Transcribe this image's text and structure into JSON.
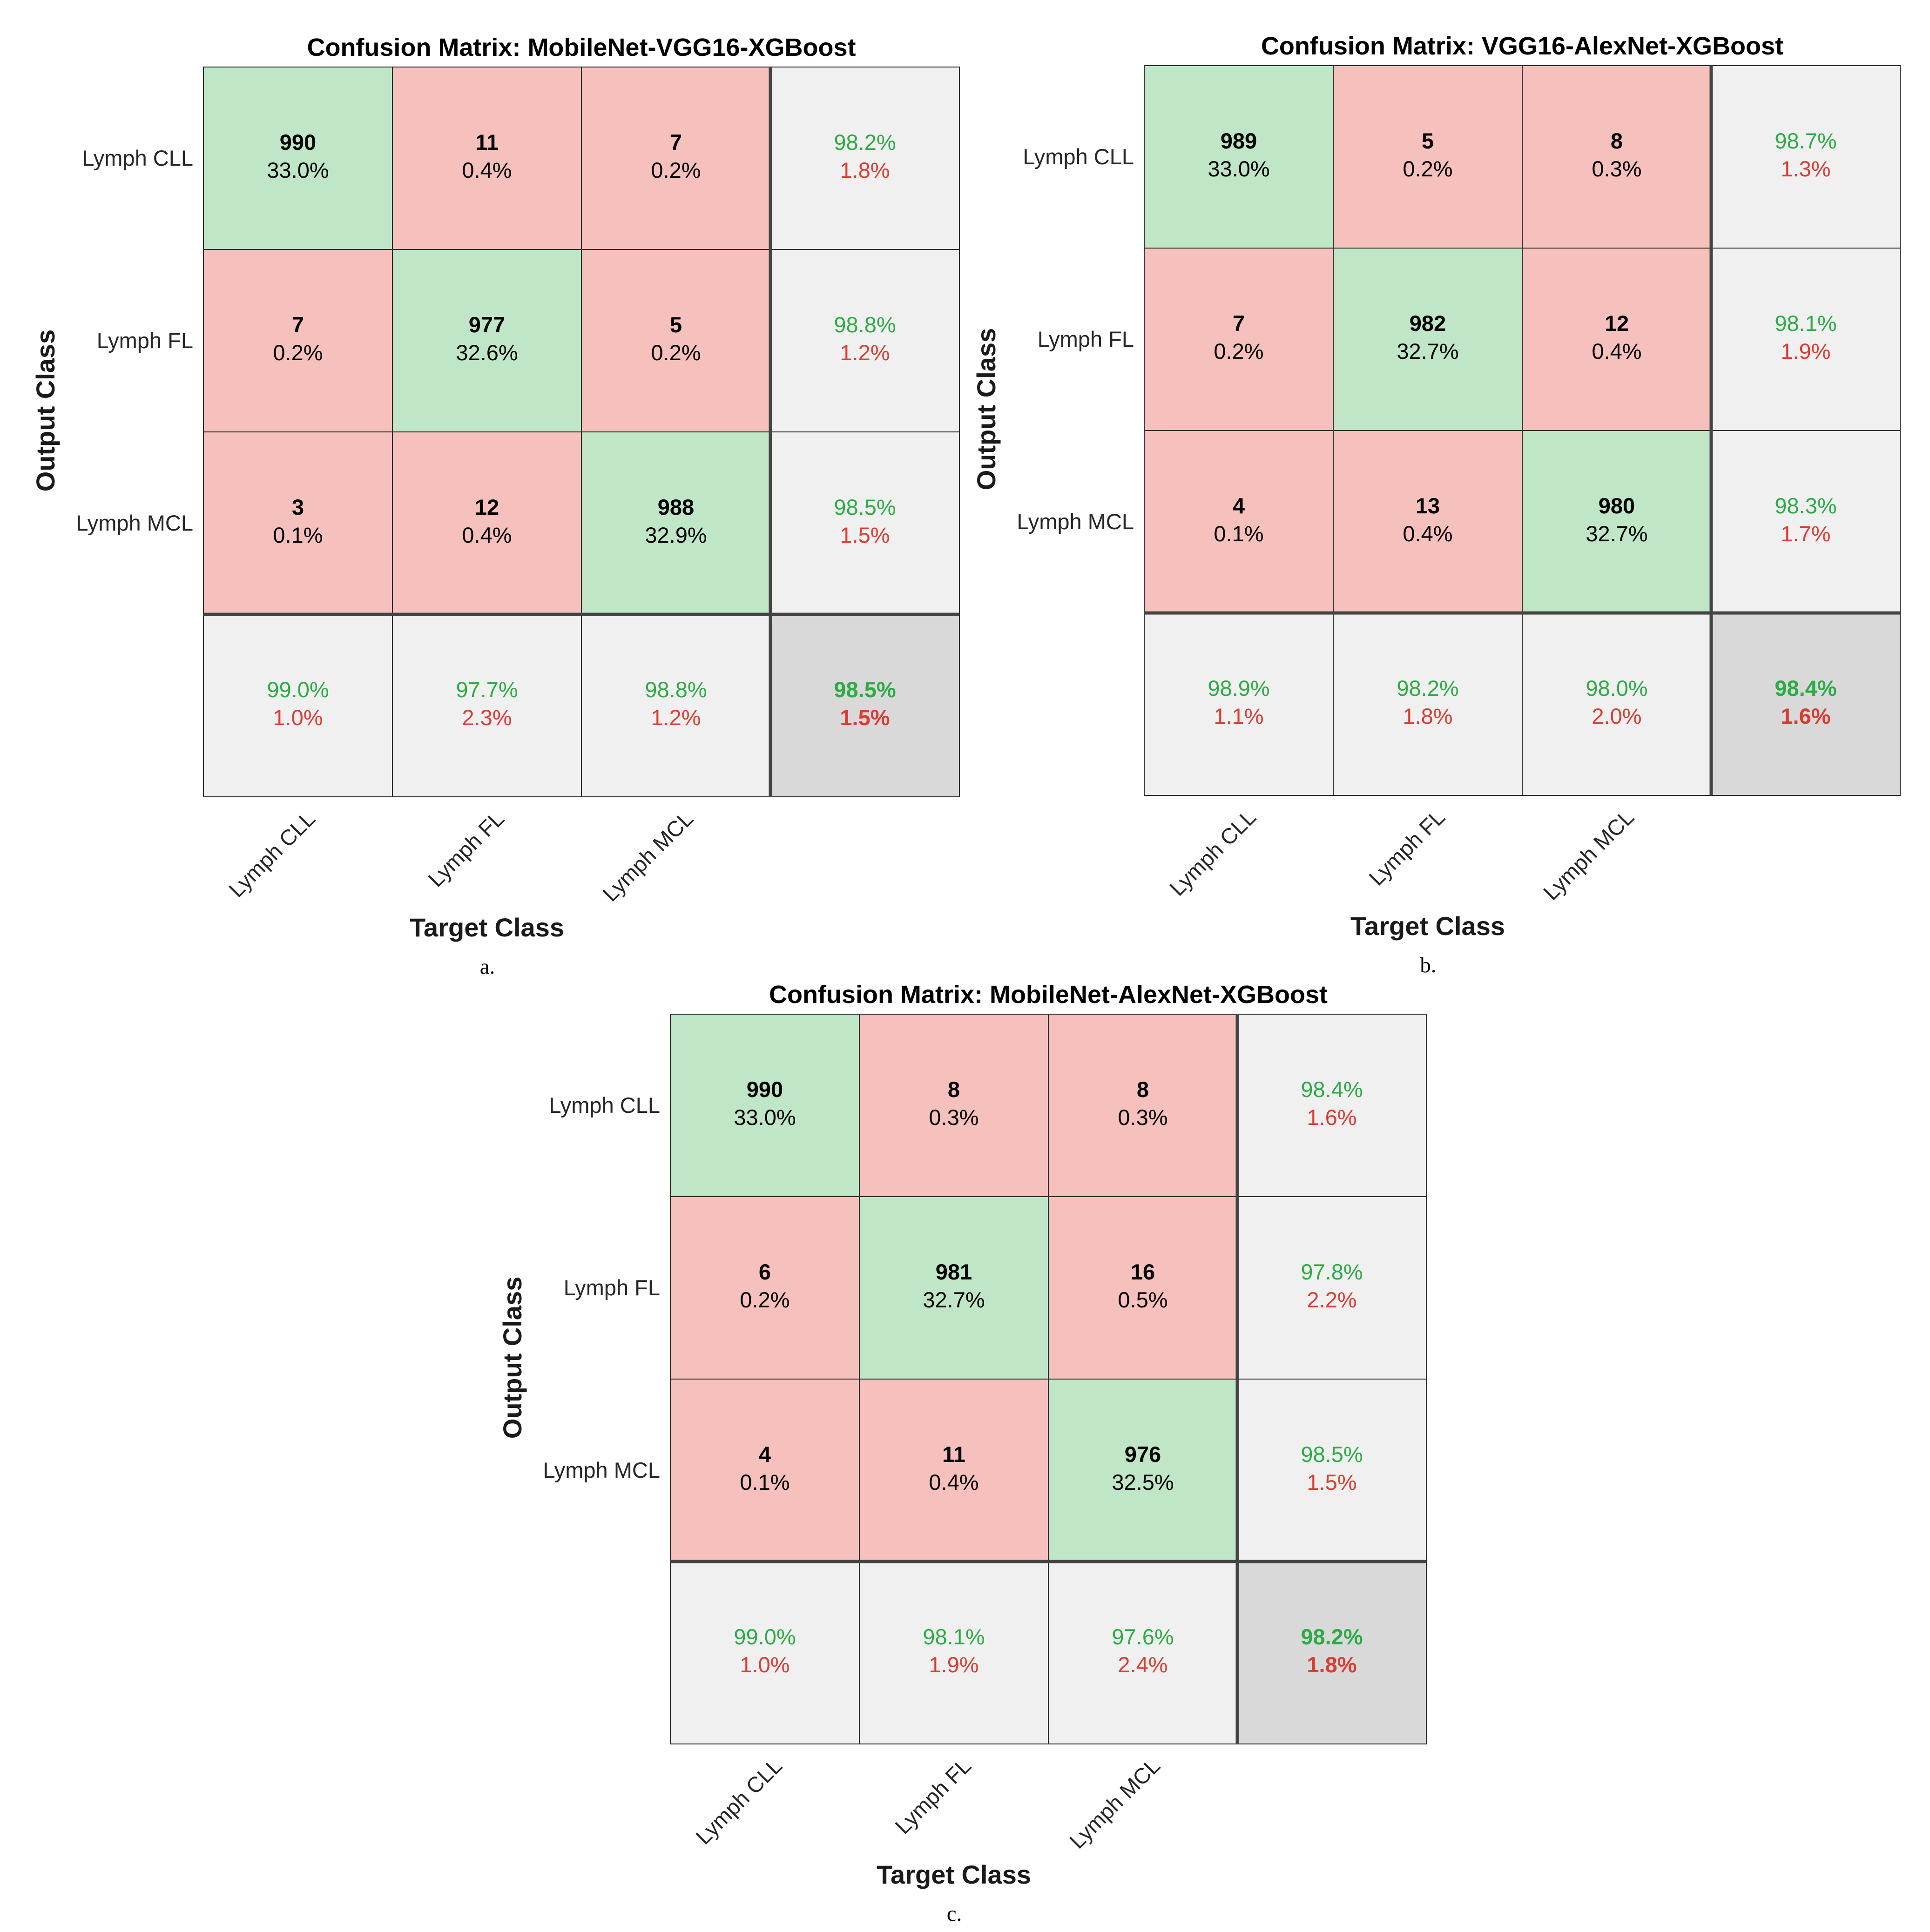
{
  "colors": {
    "correct_cell": "#bfe6c6",
    "error_cell": "#f6c1bd",
    "summary_cell": "#f0f0f0",
    "overall_cell": "#d9d9d9",
    "good_text": "#2eab46",
    "bad_text": "#dd3b32",
    "grid_line": "#2b2b2b"
  },
  "chart_data": [
    {
      "type": "heatmap",
      "title": "Confusion Matrix: MobileNet-VGG16-XGBoost",
      "xlabel": "Target Class",
      "ylabel": "Output Class",
      "caption": "a.",
      "classes": [
        "Lymph CLL",
        "Lymph FL",
        "Lymph MCL"
      ],
      "counts": [
        [
          990,
          11,
          7
        ],
        [
          7,
          977,
          5
        ],
        [
          3,
          12,
          988
        ]
      ],
      "percents": [
        [
          "33.0%",
          "0.4%",
          "0.2%"
        ],
        [
          "0.2%",
          "32.6%",
          "0.2%"
        ],
        [
          "0.1%",
          "0.4%",
          "32.9%"
        ]
      ],
      "row_summary": [
        [
          "98.2%",
          "1.8%"
        ],
        [
          "98.8%",
          "1.2%"
        ],
        [
          "98.5%",
          "1.5%"
        ]
      ],
      "col_summary": [
        [
          "99.0%",
          "1.0%"
        ],
        [
          "97.7%",
          "2.3%"
        ],
        [
          "98.8%",
          "1.2%"
        ]
      ],
      "overall": [
        "98.5%",
        "1.5%"
      ]
    },
    {
      "type": "heatmap",
      "title": "Confusion Matrix: VGG16-AlexNet-XGBoost",
      "xlabel": "Target Class",
      "ylabel": "Output Class",
      "caption": "b.",
      "classes": [
        "Lymph CLL",
        "Lymph FL",
        "Lymph MCL"
      ],
      "counts": [
        [
          989,
          5,
          8
        ],
        [
          7,
          982,
          12
        ],
        [
          4,
          13,
          980
        ]
      ],
      "percents": [
        [
          "33.0%",
          "0.2%",
          "0.3%"
        ],
        [
          "0.2%",
          "32.7%",
          "0.4%"
        ],
        [
          "0.1%",
          "0.4%",
          "32.7%"
        ]
      ],
      "row_summary": [
        [
          "98.7%",
          "1.3%"
        ],
        [
          "98.1%",
          "1.9%"
        ],
        [
          "98.3%",
          "1.7%"
        ]
      ],
      "col_summary": [
        [
          "98.9%",
          "1.1%"
        ],
        [
          "98.2%",
          "1.8%"
        ],
        [
          "98.0%",
          "2.0%"
        ]
      ],
      "overall": [
        "98.4%",
        "1.6%"
      ]
    },
    {
      "type": "heatmap",
      "title": "Confusion Matrix: MobileNet-AlexNet-XGBoost",
      "xlabel": "Target Class",
      "ylabel": "Output Class",
      "caption": "c.",
      "classes": [
        "Lymph CLL",
        "Lymph FL",
        "Lymph MCL"
      ],
      "counts": [
        [
          990,
          8,
          8
        ],
        [
          6,
          981,
          16
        ],
        [
          4,
          11,
          976
        ]
      ],
      "percents": [
        [
          "33.0%",
          "0.3%",
          "0.3%"
        ],
        [
          "0.2%",
          "32.7%",
          "0.5%"
        ],
        [
          "0.1%",
          "0.4%",
          "32.5%"
        ]
      ],
      "row_summary": [
        [
          "98.4%",
          "1.6%"
        ],
        [
          "97.8%",
          "2.2%"
        ],
        [
          "98.5%",
          "1.5%"
        ]
      ],
      "col_summary": [
        [
          "99.0%",
          "1.0%"
        ],
        [
          "98.1%",
          "1.9%"
        ],
        [
          "97.6%",
          "2.4%"
        ]
      ],
      "overall": [
        "98.2%",
        "1.8%"
      ]
    }
  ]
}
